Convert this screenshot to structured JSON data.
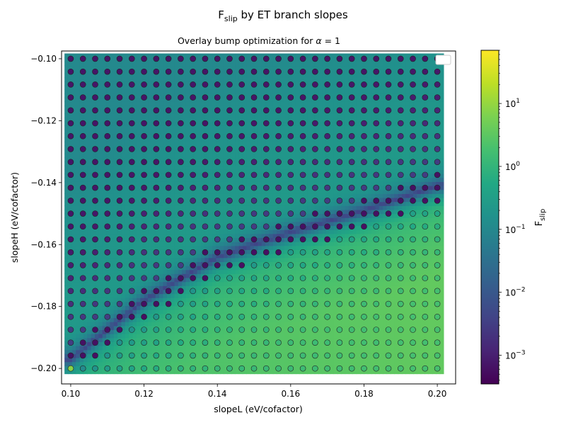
{
  "chart_data": {
    "type": "heatmap",
    "title_main": "F",
    "title_sub": "slip",
    "title_rest": " by ET branch slopes",
    "subtitle_prefix": "Overlay bump optimization for ",
    "subtitle_symbol": "α",
    "subtitle_suffix": " = 1",
    "xlabel": "slopeL (eV/cofactor)",
    "ylabel": "slopeH (eV/cofactor)",
    "xlim": [
      0.0975,
      0.205
    ],
    "ylim": [
      -0.205,
      -0.0975
    ],
    "x_ticks": [
      0.1,
      0.12,
      0.14,
      0.16,
      0.18,
      0.2
    ],
    "x_tick_labels": [
      "0.10",
      "0.12",
      "0.14",
      "0.16",
      "0.18",
      "0.20"
    ],
    "y_ticks": [
      -0.1,
      -0.12,
      -0.14,
      -0.16,
      -0.18,
      -0.2
    ],
    "y_tick_labels": [
      "−0.10",
      "−0.12",
      "−0.14",
      "−0.16",
      "−0.18",
      "−0.20"
    ],
    "grid": false,
    "legend": "empty box, top-right",
    "colorbar": {
      "label_main": "F",
      "label_sub": "slip",
      "scale": "log",
      "range": [
        0.00035,
        70
      ],
      "ticks": [
        {
          "value": 0.001,
          "base": "10",
          "exp": "−3"
        },
        {
          "value": 0.01,
          "base": "10",
          "exp": "−2"
        },
        {
          "value": 0.1,
          "base": "10",
          "exp": "−1"
        },
        {
          "value": 1,
          "base": "10",
          "exp": "0"
        },
        {
          "value": 10,
          "base": "10",
          "exp": "1"
        }
      ],
      "colormap": "viridis"
    },
    "grid_x": {
      "start": 0.1,
      "end": 0.2,
      "count": 31
    },
    "grid_y": {
      "start": -0.2,
      "end": -0.1,
      "count": 25
    },
    "valley": {
      "points": [
        [
          0.1,
          -0.197
        ],
        [
          0.12,
          -0.178
        ],
        [
          0.14,
          -0.164
        ],
        [
          0.16,
          -0.156
        ],
        [
          0.18,
          -0.149
        ],
        [
          0.2,
          -0.141
        ]
      ]
    },
    "field_model": "F_slip = 2.5 * (0.10 - slopeH) * (1 - 0.5*(slopeL - 0.10)/0.10) ... log-scale surface with minimum along valley",
    "marker_colors": "same colormap, per-point optimized F_slip"
  }
}
